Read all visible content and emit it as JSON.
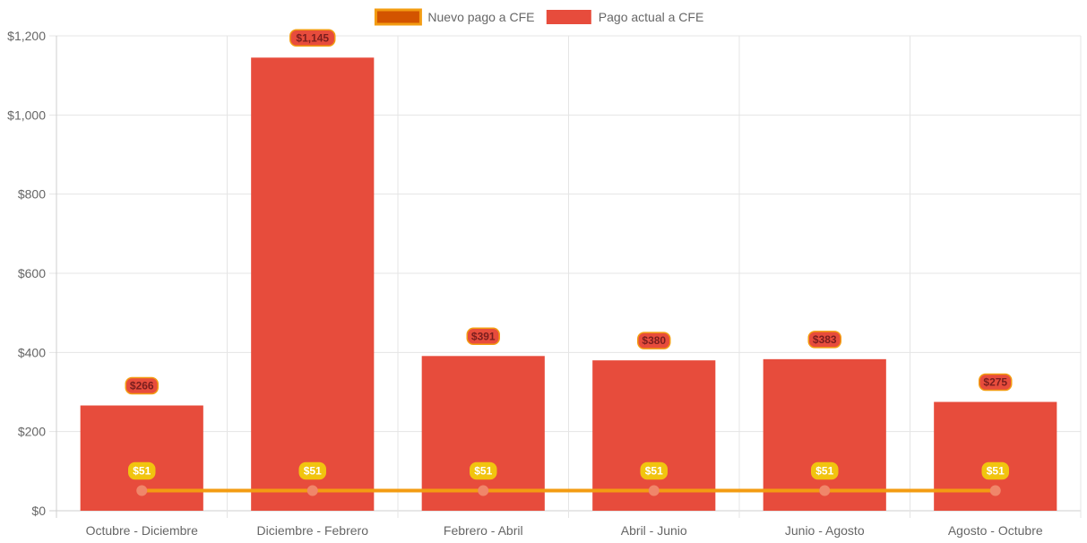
{
  "chart_data": {
    "type": "bar",
    "categories": [
      "Octubre - Diciembre",
      "Diciembre - Febrero",
      "Febrero - Abril",
      "Abril - Junio",
      "Junio - Agosto",
      "Agosto - Octubre"
    ],
    "series": [
      {
        "name": "Nuevo pago a CFE",
        "type": "line",
        "values": [
          51,
          51,
          51,
          51,
          51,
          51
        ],
        "labels": [
          "$51",
          "$51",
          "$51",
          "$51",
          "$51",
          "$51"
        ],
        "color": "#f39c12",
        "legend_fill": "#d35400",
        "point_color": "#f0866a",
        "label_bg": "#f1c40f"
      },
      {
        "name": "Pago actual a CFE",
        "type": "bar",
        "values": [
          266,
          1145,
          391,
          380,
          383,
          275
        ],
        "labels": [
          "$266",
          "$1,145",
          "$391",
          "$380",
          "$383",
          "$275"
        ],
        "color": "#e74c3c",
        "label_border": "#f39c12"
      }
    ],
    "y_ticks": [
      "$0",
      "$200",
      "$400",
      "$600",
      "$800",
      "$1,000",
      "$1,200"
    ],
    "ylim": [
      0,
      1200
    ],
    "title": "",
    "xlabel": "",
    "ylabel": "",
    "grid": true,
    "legend_position": "top"
  }
}
